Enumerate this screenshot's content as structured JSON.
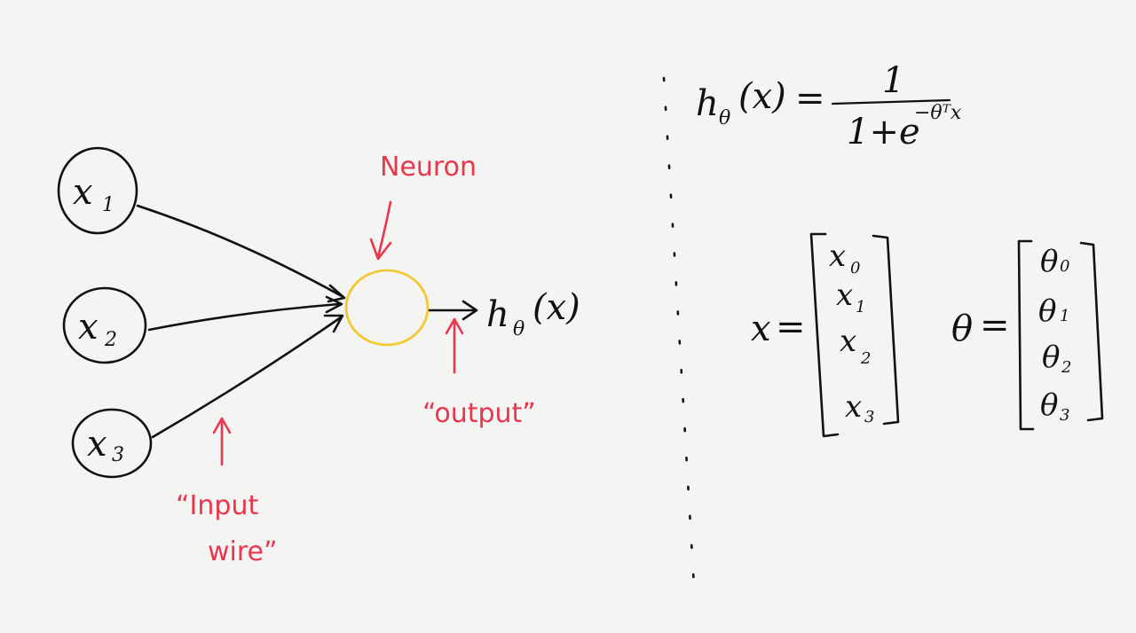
{
  "colors": {
    "ink": "#111111",
    "accent": "#e8374d",
    "neuron": "#f2c835",
    "paper": "#f4f4f3"
  },
  "inputs": [
    {
      "var": "x",
      "sub": "1"
    },
    {
      "var": "x",
      "sub": "2"
    },
    {
      "var": "x",
      "sub": "3"
    }
  ],
  "labels": {
    "neuron": "Neuron",
    "output": "“output”",
    "input_wire_line1": "“Input",
    "input_wire_line2": "wire”"
  },
  "output": {
    "h": "h",
    "theta": "θ",
    "arg": "(x)"
  },
  "formula": {
    "lhs_h": "h",
    "lhs_theta": "θ",
    "lhs_arg": "(x)",
    "equals": "=",
    "numerator": "1",
    "denominator_base": "1+e",
    "denominator_exp": "−θᵀx"
  },
  "x_vector": {
    "name": "x",
    "equals": "=",
    "entries": [
      {
        "var": "x",
        "sub": "0"
      },
      {
        "var": "x",
        "sub": "1"
      },
      {
        "var": "x",
        "sub": "2"
      },
      {
        "var": "x",
        "sub": "3"
      }
    ]
  },
  "theta_vector": {
    "name": "θ",
    "equals": "=",
    "entries": [
      {
        "var": "θ",
        "sub": "0"
      },
      {
        "var": "θ",
        "sub": "1"
      },
      {
        "var": "θ",
        "sub": "2"
      },
      {
        "var": "θ",
        "sub": "3"
      }
    ]
  }
}
